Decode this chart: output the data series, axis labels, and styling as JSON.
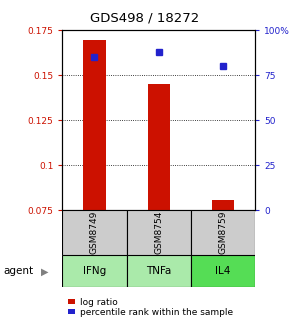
{
  "title": "GDS498 / 18272",
  "samples": [
    "GSM8749",
    "GSM8754",
    "GSM8759"
  ],
  "agents": [
    "IFNg",
    "TNFa",
    "IL4"
  ],
  "log_ratios": [
    0.1695,
    0.145,
    0.0808
  ],
  "percentile_ranks": [
    85,
    88,
    80
  ],
  "bar_baseline": 0.075,
  "bar_color": "#cc1100",
  "dot_color": "#2222cc",
  "ylim_left": [
    0.075,
    0.175
  ],
  "ylim_right": [
    0,
    100
  ],
  "yticks_left": [
    0.075,
    0.1,
    0.125,
    0.15,
    0.175
  ],
  "ytick_labels_left": [
    "0.075",
    "0.1",
    "0.125",
    "0.15",
    "0.175"
  ],
  "yticks_right": [
    0,
    25,
    50,
    75,
    100
  ],
  "ytick_labels_right": [
    "0",
    "25",
    "50",
    "75",
    "100%"
  ],
  "grid_yticks_pct": [
    25,
    50,
    75
  ],
  "sample_bg": "#cccccc",
  "agent_colors": [
    "#aaeaaa",
    "#aaeaaa",
    "#55dd55"
  ],
  "agent_label": "agent",
  "legend_bar_label": "log ratio",
  "legend_dot_label": "percentile rank within the sample",
  "bar_width": 0.35
}
